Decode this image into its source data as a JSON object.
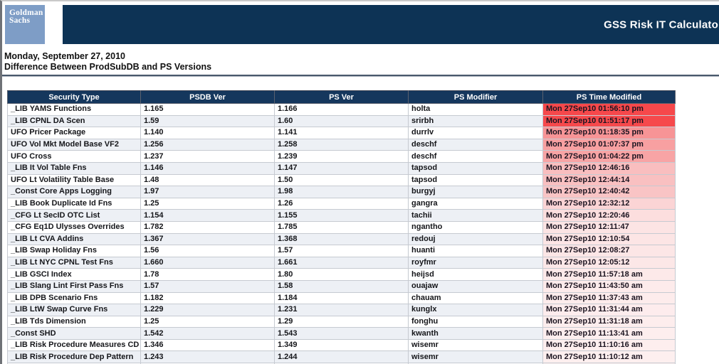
{
  "header": {
    "logo": {
      "line1": "Goldman",
      "line2": "Sachs",
      "bg_color": "#7e9dc6"
    },
    "banner": {
      "title": "GSS Risk IT Calculato",
      "bg_color": "#0d3355"
    }
  },
  "page": {
    "date_line": "Monday, September 27, 2010",
    "subtitle": "Difference Between ProdSubDB and PS Versions"
  },
  "table": {
    "header_bg": "#15375d",
    "stripe_color": "#edf0f5",
    "columns": [
      "Security Type",
      "PSDB Ver",
      "PS Ver",
      "PS Modifier",
      "PS Time Modified"
    ],
    "rows": [
      {
        "security_type": "_LIB YAMS Functions",
        "psdb_ver": "1.165",
        "ps_ver": "1.166",
        "ps_modifier": "holta",
        "ps_time_modified": "Mon 27Sep10 01:56:10 pm",
        "time_bg": "#f6484b"
      },
      {
        "security_type": "_LIB CPNL DA Scen",
        "psdb_ver": "1.59",
        "ps_ver": "1.60",
        "ps_modifier": "srirbh",
        "ps_time_modified": "Mon 27Sep10 01:51:17 pm",
        "time_bg": "#f6494c"
      },
      {
        "security_type": "UFO Pricer Package",
        "psdb_ver": "1.140",
        "ps_ver": "1.141",
        "ps_modifier": "durrlv",
        "ps_time_modified": "Mon 27Sep10 01:18:35 pm",
        "time_bg": "#f79496"
      },
      {
        "security_type": "UFO Vol Mkt Model Base VF2",
        "psdb_ver": "1.256",
        "ps_ver": "1.258",
        "ps_modifier": "deschf",
        "ps_time_modified": "Mon 27Sep10 01:07:37 pm",
        "time_bg": "#f8a0a1"
      },
      {
        "security_type": "UFO Cross",
        "psdb_ver": "1.237",
        "ps_ver": "1.239",
        "ps_modifier": "deschf",
        "ps_time_modified": "Mon 27Sep10 01:04:22 pm",
        "time_bg": "#f8a4a5"
      },
      {
        "security_type": "_LIB It Vol Table Fns",
        "psdb_ver": "1.146",
        "ps_ver": "1.147",
        "ps_modifier": "tapsod",
        "ps_time_modified": "Mon 27Sep10 12:46:16",
        "time_bg": "#f9bebf"
      },
      {
        "security_type": "UFO Lt Volatility Table Base",
        "psdb_ver": "1.48",
        "ps_ver": "1.50",
        "ps_modifier": "tapsod",
        "ps_time_modified": "Mon 27Sep10 12:44:14",
        "time_bg": "#f9c0c1"
      },
      {
        "security_type": "_Const Core Apps Logging",
        "psdb_ver": "1.97",
        "ps_ver": "1.98",
        "ps_modifier": "burgyj",
        "ps_time_modified": "Mon 27Sep10 12:40:42",
        "time_bg": "#f9c4c5"
      },
      {
        "security_type": "_LIB Book Duplicate Id Fns",
        "psdb_ver": "1.25",
        "ps_ver": "1.26",
        "ps_modifier": "gangra",
        "ps_time_modified": "Mon 27Sep10 12:32:12",
        "time_bg": "#fbd4d5"
      },
      {
        "security_type": "_CFG Lt SecID OTC List",
        "psdb_ver": "1.154",
        "ps_ver": "1.155",
        "ps_modifier": "tachii",
        "ps_time_modified": "Mon 27Sep10 12:20:46",
        "time_bg": "#fcdede"
      },
      {
        "security_type": "_CFG Eq1D Ulysses Overrides",
        "psdb_ver": "1.782",
        "ps_ver": "1.785",
        "ps_modifier": "ngantho",
        "ps_time_modified": "Mon 27Sep10 12:11:47",
        "time_bg": "#fce4e4"
      },
      {
        "security_type": "_LIB Lt CVA Addins",
        "psdb_ver": "1.367",
        "ps_ver": "1.368",
        "ps_modifier": "redouj",
        "ps_time_modified": "Mon 27Sep10 12:10:54",
        "time_bg": "#fce5e5"
      },
      {
        "security_type": "_LIB Swap Holiday Fns",
        "psdb_ver": "1.56",
        "ps_ver": "1.57",
        "ps_modifier": "huanti",
        "ps_time_modified": "Mon 27Sep10 12:08:27",
        "time_bg": "#fce6e6"
      },
      {
        "security_type": "_LIB Lt NYC CPNL Test Fns",
        "psdb_ver": "1.660",
        "ps_ver": "1.661",
        "ps_modifier": "royfmr",
        "ps_time_modified": "Mon 27Sep10 12:05:12",
        "time_bg": "#fce7e7"
      },
      {
        "security_type": "_LIB GSCI Index",
        "psdb_ver": "1.78",
        "ps_ver": "1.80",
        "ps_modifier": "heijsd",
        "ps_time_modified": "Mon 27Sep10 11:57:18 am",
        "time_bg": "#fde9e9"
      },
      {
        "security_type": "_LIB Slang Lint First Pass Fns",
        "psdb_ver": "1.57",
        "ps_ver": "1.58",
        "ps_modifier": "ouajaw",
        "ps_time_modified": "Mon 27Sep10 11:43:50 am",
        "time_bg": "#fdebeb"
      },
      {
        "security_type": "_LIB DPB Scenario Fns",
        "psdb_ver": "1.182",
        "ps_ver": "1.184",
        "ps_modifier": "chauam",
        "ps_time_modified": "Mon 27Sep10 11:37:43 am",
        "time_bg": "#fdecec"
      },
      {
        "security_type": "_LIB LtW Swap Curve Fns",
        "psdb_ver": "1.229",
        "ps_ver": "1.231",
        "ps_modifier": "kunglx",
        "ps_time_modified": "Mon 27Sep10 11:31:44 am",
        "time_bg": "#fdeced"
      },
      {
        "security_type": "_LIB Tds Dimension",
        "psdb_ver": "1.25",
        "ps_ver": "1.29",
        "ps_modifier": "fonghu",
        "ps_time_modified": "Mon 27Sep10 11:31:18 am",
        "time_bg": "#fdeded"
      },
      {
        "security_type": "_Const SHD",
        "psdb_ver": "1.542",
        "ps_ver": "1.543",
        "ps_modifier": "kwanth",
        "ps_time_modified": "Mon 27Sep10 11:13:41 am",
        "time_bg": "#fdeeee"
      },
      {
        "security_type": "_LIB Risk Procedure Measures CD",
        "psdb_ver": "1.346",
        "ps_ver": "1.349",
        "ps_modifier": "wisemr",
        "ps_time_modified": "Mon 27Sep10 11:10:16 am",
        "time_bg": "#fdeeee"
      },
      {
        "security_type": "_LIB Risk Procedure Dep Pattern",
        "psdb_ver": "1.243",
        "ps_ver": "1.244",
        "ps_modifier": "wisemr",
        "ps_time_modified": "Mon 27Sep10 11:10:12 am",
        "time_bg": "#fdefef"
      }
    ],
    "partial_row_time_bg": "#fdf0f0"
  }
}
